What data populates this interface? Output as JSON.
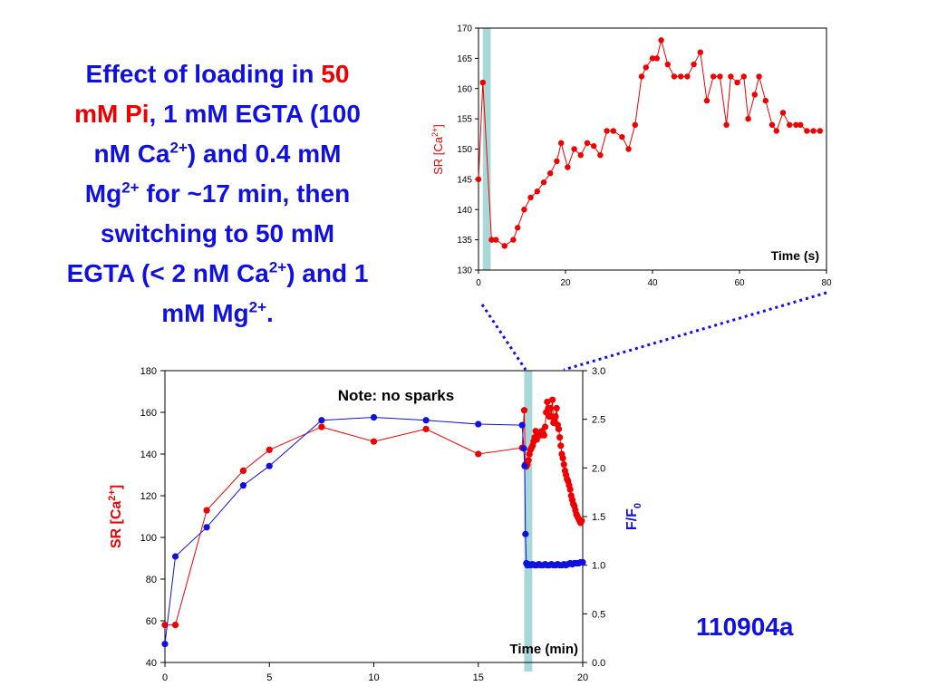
{
  "title": {
    "line1_pre": "Effect of loading in ",
    "line1_red": "50",
    "line2_red": "mM Pi",
    "line2_post": ", 1 mM EGTA (100",
    "line3_pre": "nM Ca",
    "line3_sup": "2+",
    "line3_post": ") and 0.4 mM",
    "line4_pre": "Mg",
    "line4_sup": "2+",
    "line4_post": " for ~17 min, then",
    "line5": "switching to 50 mM",
    "line6_pre": "EGTA (< 2 nM Ca",
    "line6_sup": "2+",
    "line6_post": ") and 1",
    "line7_pre": "mM Mg",
    "line7_sup": "2+",
    "line7_post": "."
  },
  "experiment_id": "110904a",
  "colors": {
    "red": "#ee0000",
    "blue": "#1010e0",
    "highlight": "#a8d8d8"
  },
  "chart_data": [
    {
      "type": "line",
      "xlabel": "Time (s)",
      "ylabel_main": "SR [Ca",
      "ylabel_sup": "2+",
      "ylabel_close": "]",
      "xlim": [
        0,
        80
      ],
      "ylim": [
        130,
        170
      ],
      "xticks": [
        0,
        20,
        40,
        60,
        80
      ],
      "yticks": [
        130,
        135,
        140,
        145,
        150,
        155,
        160,
        165,
        170
      ],
      "highlight_x": [
        1,
        2.8
      ],
      "series": [
        {
          "color": "#ee0000",
          "x": [
            0,
            1,
            3,
            4,
            6,
            8,
            9,
            10.5,
            12,
            13.5,
            15,
            16.5,
            18,
            19,
            20.5,
            22,
            23.5,
            25,
            26.5,
            28,
            29.5,
            31,
            33,
            34.5,
            36,
            37.5,
            38.5,
            40,
            41,
            42,
            43.5,
            45,
            46.5,
            48,
            49.5,
            51,
            52.5,
            54,
            55.5,
            57,
            58,
            59.5,
            61,
            62,
            63.5,
            64.5,
            66,
            67.5,
            68.5,
            70,
            71.5,
            73,
            74,
            75.5,
            77,
            78.5
          ],
          "y": [
            145,
            161,
            135,
            135,
            134,
            135,
            137,
            140,
            142,
            143,
            144.5,
            146,
            148,
            151,
            147,
            150,
            149,
            151,
            150.5,
            149,
            153,
            153,
            152,
            150,
            154,
            162,
            163.5,
            165,
            165,
            168,
            164,
            162,
            162,
            162,
            164,
            166,
            158,
            162,
            162,
            154,
            162,
            161,
            162,
            155,
            159,
            162,
            158,
            154,
            153,
            156,
            154,
            154,
            154,
            153,
            153,
            153
          ]
        }
      ]
    },
    {
      "type": "line",
      "annotation": "Note: no sparks",
      "xlabel": "Time (min)",
      "ylabel_left_main": "SR [Ca",
      "ylabel_left_sup": "2+",
      "ylabel_left_close": "]",
      "ylabel_right_main": "F/F",
      "ylabel_right_sub": "0",
      "xlim": [
        0,
        20
      ],
      "ylim_left": [
        40,
        180
      ],
      "ylim_right": [
        0,
        3
      ],
      "xticks": [
        0,
        5,
        10,
        15,
        20
      ],
      "yticks_left": [
        40,
        60,
        80,
        100,
        120,
        140,
        160,
        180
      ],
      "yticks_right": [
        "0.0",
        "0.5",
        "1.0",
        "1.5",
        "2.0",
        "2.5",
        "3.0"
      ],
      "highlight_x": [
        17.2,
        17.5
      ],
      "series": [
        {
          "axis": "left",
          "color": "#ee0000",
          "x": [
            0,
            0.5,
            2,
            3.75,
            5,
            7.5,
            10,
            12.5,
            15,
            17.1,
            17.2,
            17.25,
            17.3,
            17.35,
            17.4,
            17.45,
            17.5,
            17.55,
            17.6,
            17.65,
            17.7,
            17.75,
            17.8,
            17.9,
            18.0,
            18.05,
            18.1,
            18.15,
            18.2,
            18.25,
            18.3,
            18.35,
            18.4,
            18.45,
            18.5,
            18.55,
            18.6,
            18.65,
            18.7,
            18.75,
            18.8,
            18.85,
            18.9,
            18.95,
            19.0,
            19.05,
            19.1,
            19.15,
            19.2,
            19.25,
            19.3,
            19.35,
            19.4,
            19.45,
            19.5,
            19.55,
            19.6,
            19.65,
            19.7,
            19.75,
            19.8,
            19.85,
            19.9,
            19.95
          ],
          "y": [
            58,
            58,
            113,
            132,
            142,
            153,
            146,
            152,
            140,
            143,
            161,
            135,
            134,
            135,
            137,
            140,
            142,
            143,
            144,
            146,
            148,
            151,
            147,
            150,
            149,
            151,
            150,
            149,
            153,
            160,
            165,
            162,
            158,
            162,
            158,
            166,
            155,
            156,
            158,
            162,
            154,
            152,
            148,
            144,
            140,
            138,
            135,
            132,
            130,
            128,
            127,
            125,
            123,
            120,
            118,
            116,
            115,
            113,
            111,
            110,
            109,
            108,
            107,
            108
          ]
        },
        {
          "axis": "right",
          "color": "#1010e0",
          "x": [
            0,
            0.5,
            2,
            3.75,
            5,
            7.5,
            10,
            12.5,
            15,
            17.1,
            17.18,
            17.22,
            17.26,
            17.3,
            17.35,
            17.4,
            17.5,
            17.6,
            17.7,
            17.8,
            17.9,
            18.0,
            18.1,
            18.2,
            18.3,
            18.4,
            18.5,
            18.6,
            18.7,
            18.8,
            18.9,
            19.0,
            19.1,
            19.2,
            19.3,
            19.4,
            19.5,
            19.6,
            19.7,
            19.8,
            19.9,
            20.0
          ],
          "y": [
            0.19,
            1.09,
            1.39,
            1.82,
            2.02,
            2.49,
            2.52,
            2.49,
            2.45,
            2.44,
            2.2,
            2.02,
            1.32,
            1.02,
            1.0,
            1.01,
            1.0,
            1.01,
            1.0,
            1.0,
            1.01,
            1.0,
            1.0,
            1.01,
            1.0,
            1.0,
            1.01,
            1.0,
            1.0,
            1.01,
            1.0,
            1.0,
            1.01,
            1.0,
            1.01,
            1.02,
            1.01,
            1.02,
            1.02,
            1.02,
            1.03,
            1.03
          ]
        }
      ]
    }
  ]
}
